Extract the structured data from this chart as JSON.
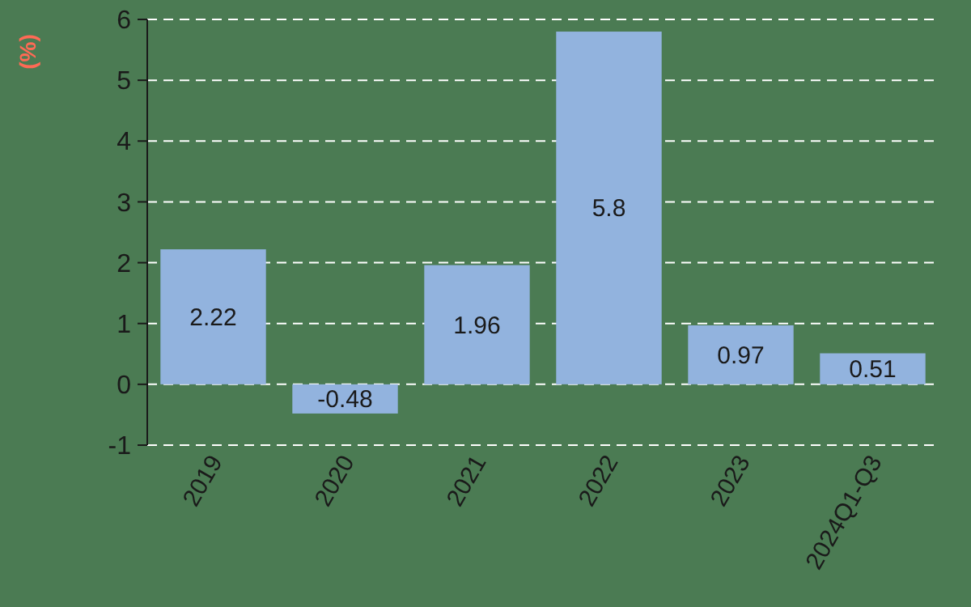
{
  "chart_data": {
    "type": "bar",
    "ylabel": "(%)",
    "categories": [
      "2019",
      "2020",
      "2021",
      "2022",
      "2023",
      "2024Q1-Q3"
    ],
    "values": [
      2.22,
      -0.48,
      1.96,
      5.8,
      0.97,
      0.51
    ],
    "color": "#92b3de",
    "ylim": [
      -1,
      6
    ],
    "yticks": [
      -1,
      0,
      1,
      2,
      3,
      4,
      5,
      6
    ],
    "grid": "y",
    "data_labels": true
  }
}
